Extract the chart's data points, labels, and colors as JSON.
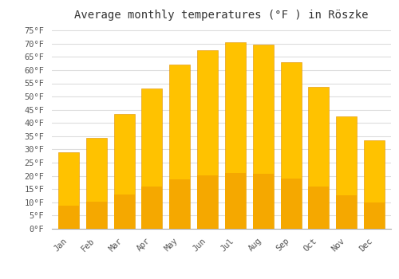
{
  "title": "Average monthly temperatures (°F ) in Röszke",
  "months": [
    "Jan",
    "Feb",
    "Mar",
    "Apr",
    "May",
    "Jun",
    "Jul",
    "Aug",
    "Sep",
    "Oct",
    "Nov",
    "Dec"
  ],
  "values": [
    29,
    34.5,
    43.5,
    53,
    62,
    67.5,
    70.5,
    69.5,
    63,
    53.5,
    42.5,
    33.5
  ],
  "bar_color_top": "#FFC200",
  "bar_color_bottom": "#F5A800",
  "bar_edge_color": "#E09000",
  "ylim": [
    0,
    77
  ],
  "yticks": [
    0,
    5,
    10,
    15,
    20,
    25,
    30,
    35,
    40,
    45,
    50,
    55,
    60,
    65,
    70,
    75
  ],
  "ytick_labels": [
    "0°F",
    "5°F",
    "10°F",
    "15°F",
    "20°F",
    "25°F",
    "30°F",
    "35°F",
    "40°F",
    "45°F",
    "50°F",
    "55°F",
    "60°F",
    "65°F",
    "70°F",
    "75°F"
  ],
  "background_color": "#FFFFFF",
  "grid_color": "#DDDDDD",
  "title_fontsize": 10,
  "tick_fontsize": 7.5,
  "font_family": "monospace"
}
